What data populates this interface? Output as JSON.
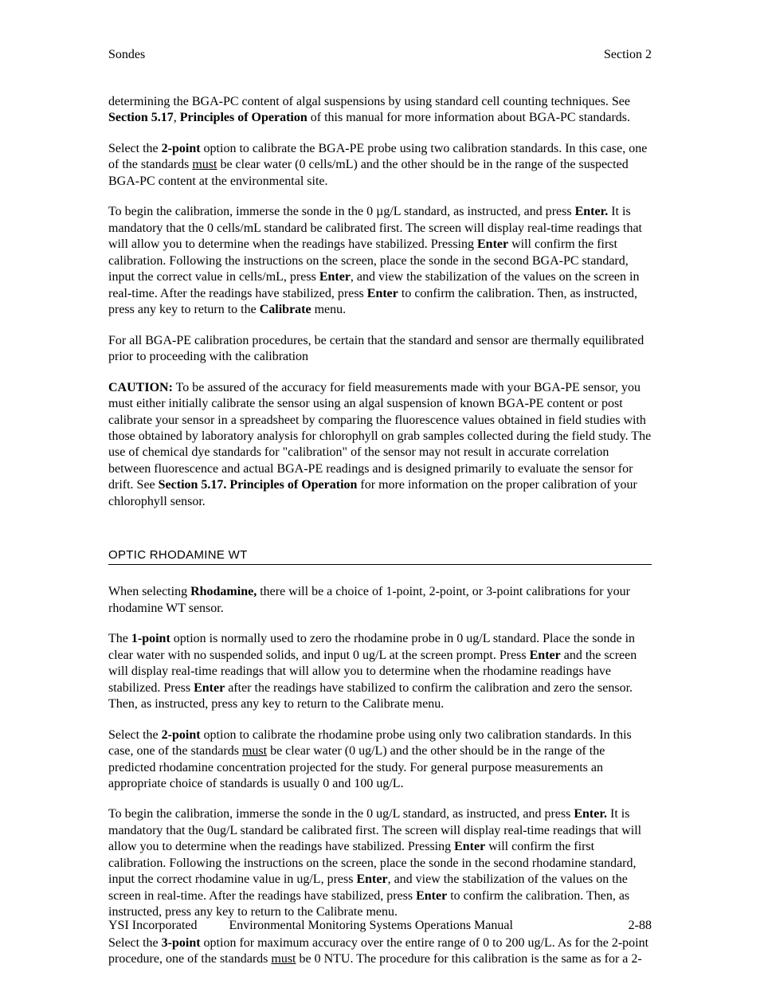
{
  "header": {
    "left": "Sondes",
    "right": "Section 2"
  },
  "paragraphs": {
    "p1_pre": "determining the BGA-PC content of algal suspensions by using standard cell counting techniques.   See ",
    "p1_b1": "Section 5.17",
    "p1_sep": ", ",
    "p1_b2": "Principles of Operation",
    "p1_post": " of this manual for more information about BGA-PC standards.",
    "p2_pre": "Select the ",
    "p2_b": "2-point",
    "p2_mid1": " option to calibrate the BGA-PE probe using two calibration standards.  In this case, one of the standards ",
    "p2_u": "must",
    "p2_post": " be clear water (0 cells/mL) and the other should be in the range of the suspected BGA-PC content at the environmental site.",
    "p3_a": "To begin the calibration, immerse the sonde in the 0 µg/L standard, as instructed, and press ",
    "p3_b1": "Enter.",
    "p3_b": "  It is mandatory that the 0 cells/mL standard be calibrated first.  The screen will display real-time readings that will allow you to determine when the readings have stabilized.  Pressing ",
    "p3_b2": "Enter",
    "p3_c": " will confirm the first calibration.  Following the instructions on the screen, place the sonde in the second BGA-PC standard, input the correct value in cells/mL, press ",
    "p3_b3": "Enter",
    "p3_d": ", and view the stabilization of the values on the screen in real-time.  After the readings have stabilized, press ",
    "p3_b4": "Enter",
    "p3_e": " to confirm the calibration.  Then, as instructed, press any key to return to the ",
    "p3_b5": "Calibrate",
    "p3_f": " menu.",
    "p4": "For all BGA-PE calibration procedures, be certain that the standard and sensor are thermally equilibrated prior to proceeding with the calibration",
    "p5_b1": "CAUTION:",
    "p5_a": " To be assured of the accuracy for field measurements made with your BGA-PE sensor, you must either initially calibrate the sensor using an algal suspension of known BGA-PE content or post calibrate your sensor in a spreadsheet by comparing the fluorescence values obtained in field studies with those obtained by laboratory analysis for chlorophyll on grab samples collected during the field study.   The use of chemical dye standards for \"calibration\" of the sensor may not result in accurate correlation between fluorescence and actual BGA-PE readings and is designed primarily to evaluate the sensor for drift.  See ",
    "p5_b2": "Section 5.17. Principles of Operation",
    "p5_b": " for more information on the proper calibration of your chlorophyll sensor.",
    "heading": "OPTIC RHODAMINE WT",
    "p6_a": "When selecting ",
    "p6_b": "Rhodamine,",
    "p6_c": " there will be a choice of 1-point, 2-point, or 3-point calibrations for your rhodamine WT sensor.",
    "p7_a": "The ",
    "p7_b1": "1-point",
    "p7_b": " option is normally used to zero the rhodamine probe in 0 ug/L standard.  Place the sonde in clear water with no suspended solids, and input 0 ug/L at the screen prompt.  Press ",
    "p7_b2": "Enter",
    "p7_c": " and the screen will display real-time readings that will allow you to determine when the rhodamine readings have stabilized.  Press ",
    "p7_b3": "Enter",
    "p7_d": " after the readings have stabilized to confirm the calibration and zero the sensor.  Then, as instructed, press any key to return to the Calibrate menu.",
    "p8_a": "Select the ",
    "p8_b1": "2-point",
    "p8_b": " option to calibrate the rhodamine probe using only two calibration standards.  In this case, one of the standards ",
    "p8_u": "must",
    "p8_c": " be clear water (0 ug/L) and the other should be in the range of the predicted rhodamine concentration projected for the study.   For general purpose measurements an appropriate choice of standards is usually 0 and 100 ug/L.",
    "p9_a": "To begin the calibration, immerse the sonde in the 0 ug/L standard, as instructed, and press ",
    "p9_b1": "Enter.",
    "p9_b": "  It is mandatory that the 0ug/L standard be calibrated first.  The screen will display real-time readings that will allow you to determine when the readings have stabilized.  Pressing ",
    "p9_b2": "Enter",
    "p9_c": " will confirm the first calibration.  Following the instructions on the screen, place the sonde in the second rhodamine standard, input the correct rhodamine value in ug/L, press ",
    "p9_b3": "Enter",
    "p9_d": ", and view the stabilization of the values on the screen in real-time.  After the readings have stabilized, press ",
    "p9_b4": "Enter",
    "p9_e": " to confirm the calibration.  Then, as instructed, press any key to return to the Calibrate menu.",
    "p10_a": "Select the ",
    "p10_b1": "3-point",
    "p10_b": " option for maximum accuracy over the entire range of 0 to 200 ug/L.  As for the 2-point procedure, one of the standards ",
    "p10_u": "must",
    "p10_c": " be 0 NTU.  The procedure for this calibration is the same as for a 2-"
  },
  "footer": {
    "left": "YSI Incorporated",
    "center": "Environmental Monitoring Systems Operations Manual",
    "right": "2-88"
  }
}
